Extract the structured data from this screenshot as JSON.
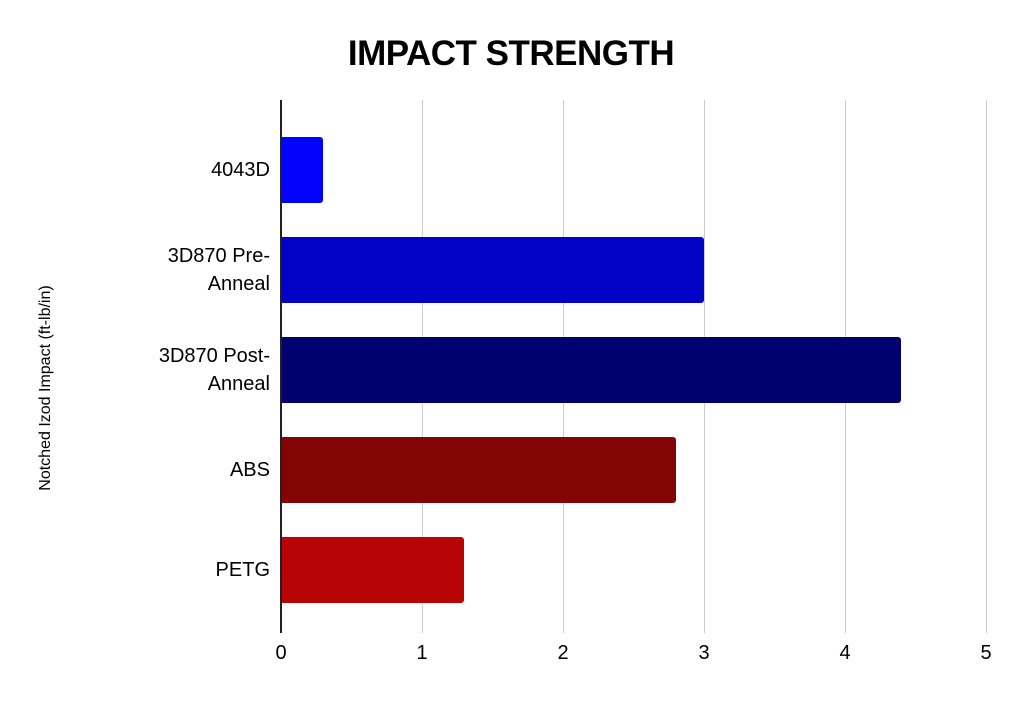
{
  "chart_data": {
    "type": "bar",
    "orientation": "horizontal",
    "title": "IMPACT STRENGTH",
    "ylabel": "Notched Izod Impact (ft-lb/in)",
    "xlabel": "",
    "categories": [
      "4043D",
      "3D870 Pre-Anneal",
      "3D870 Post-Anneal",
      "ABS",
      "PETG"
    ],
    "values": [
      0.3,
      3.0,
      4.4,
      2.8,
      1.3
    ],
    "bar_colors": [
      "#0303fd",
      "#0201c6",
      "#00006e",
      "#840303",
      "#b80404"
    ],
    "xlim": [
      0,
      5
    ],
    "xticks": [
      0,
      1,
      2,
      3,
      4,
      5
    ],
    "grid": true,
    "legend": false
  },
  "colors": {
    "background": "#ffffff",
    "grid": "#cccccc",
    "axis": "#212121",
    "title_text": "#000000",
    "label_text": "#000000"
  }
}
